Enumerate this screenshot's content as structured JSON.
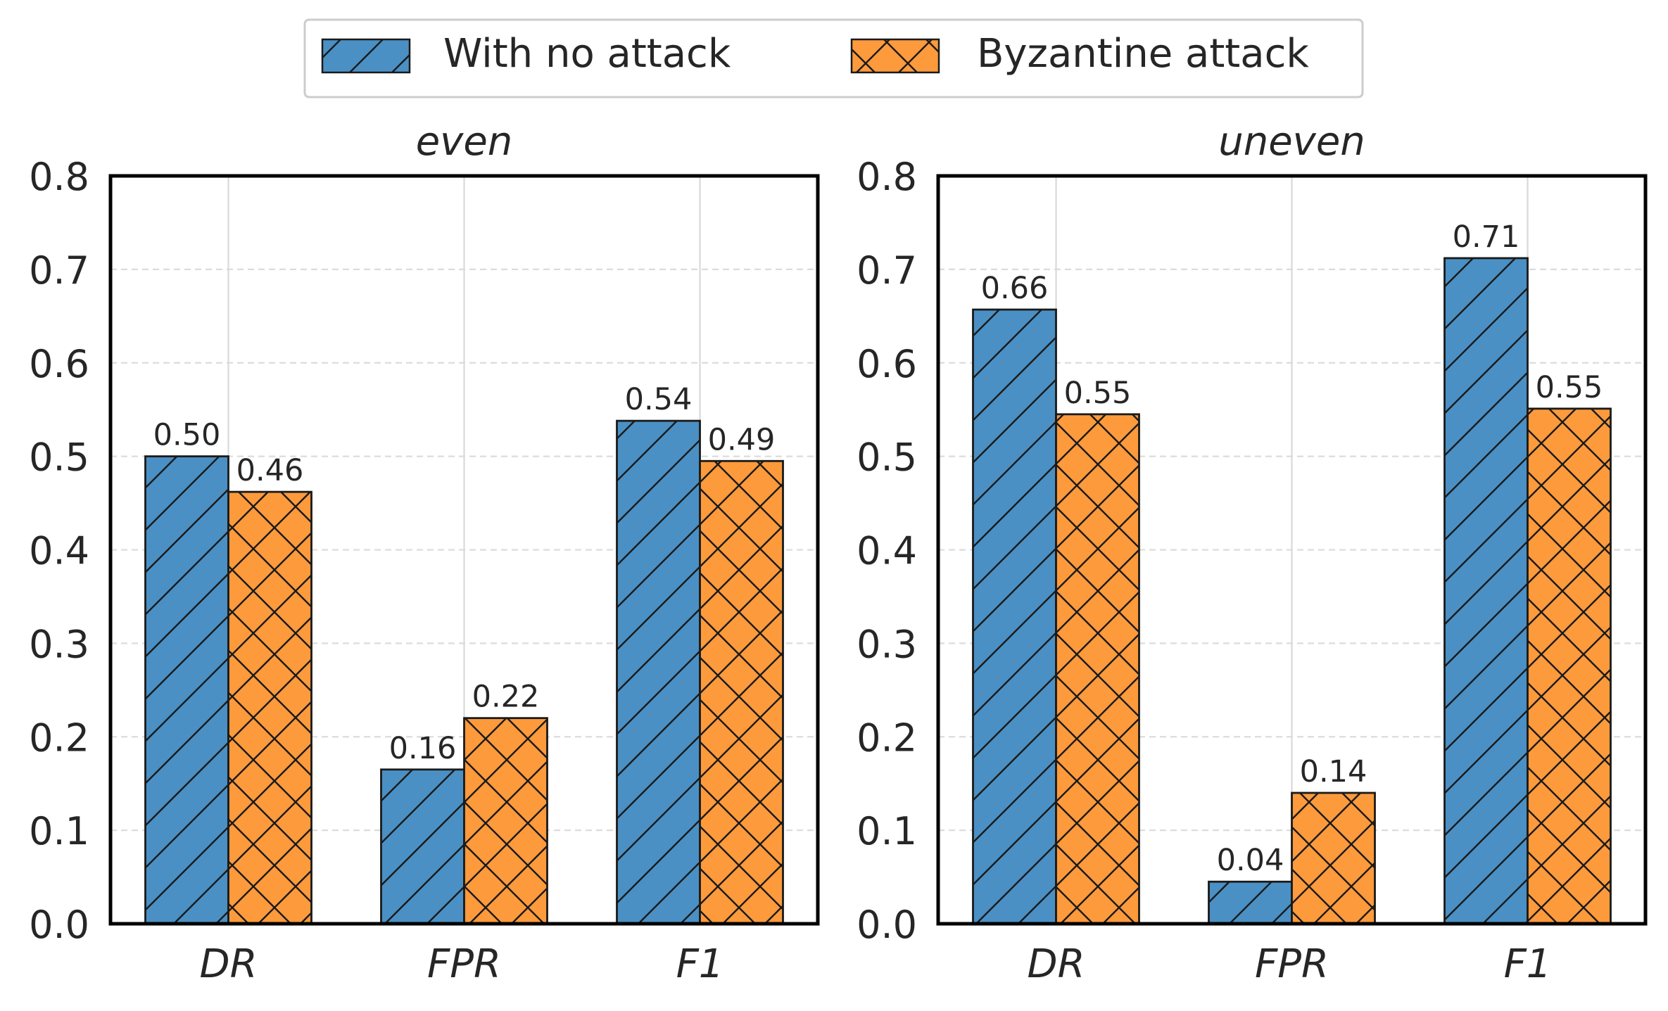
{
  "legend": {
    "placement": "top-center",
    "entries": [
      {
        "label": "With no attack",
        "color": "#4a90c4",
        "hatch": "/"
      },
      {
        "label": "Byzantine attack",
        "color": "#fd9a3c",
        "hatch": "x"
      }
    ]
  },
  "chart_data": [
    {
      "type": "bar",
      "title": "even",
      "categories": [
        "DR",
        "FPR",
        "F1"
      ],
      "series": [
        {
          "name": "With no attack",
          "values": [
            0.5,
            0.165,
            0.538
          ],
          "labels": [
            "0.50",
            "0.16",
            "0.54"
          ]
        },
        {
          "name": "Byzantine attack",
          "values": [
            0.462,
            0.22,
            0.495
          ],
          "labels": [
            "0.46",
            "0.22",
            "0.49"
          ]
        }
      ],
      "ylim": [
        0,
        0.8
      ],
      "yticks": [
        "0.0",
        "0.1",
        "0.2",
        "0.3",
        "0.4",
        "0.5",
        "0.6",
        "0.7",
        "0.8"
      ],
      "xlabel": "",
      "ylabel": "",
      "grid": "dashed horizontal, solid vertical at categories"
    },
    {
      "type": "bar",
      "title": "uneven",
      "categories": [
        "DR",
        "FPR",
        "F1"
      ],
      "series": [
        {
          "name": "With no attack",
          "values": [
            0.657,
            0.045,
            0.712
          ],
          "labels": [
            "0.66",
            "0.04",
            "0.71"
          ]
        },
        {
          "name": "Byzantine attack",
          "values": [
            0.545,
            0.14,
            0.551
          ],
          "labels": [
            "0.55",
            "0.14",
            "0.55"
          ]
        }
      ],
      "ylim": [
        0,
        0.8
      ],
      "yticks": [
        "0.0",
        "0.1",
        "0.2",
        "0.3",
        "0.4",
        "0.5",
        "0.6",
        "0.7",
        "0.8"
      ],
      "xlabel": "",
      "ylabel": "",
      "grid": "dashed horizontal, solid vertical at categories"
    }
  ]
}
